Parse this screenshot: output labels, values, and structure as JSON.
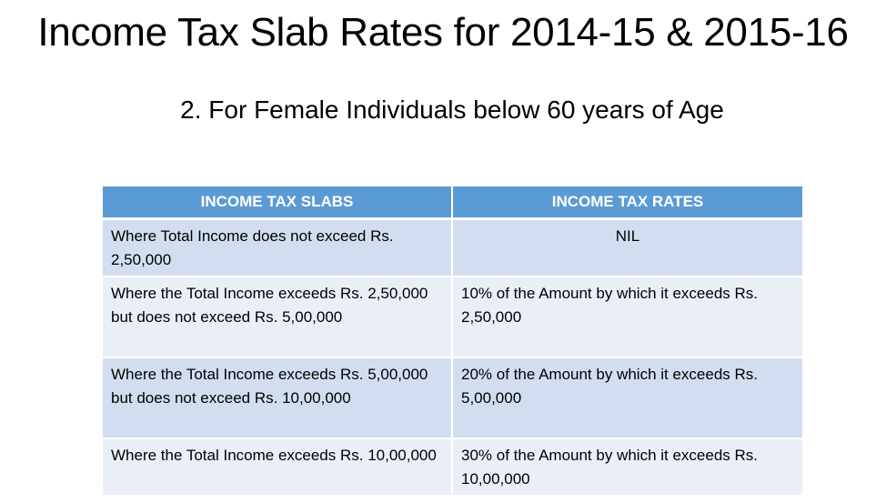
{
  "title": "Income Tax Slab Rates for 2014-15 & 2015-16",
  "subtitle": "2. For Female Individuals below 60 years of Age",
  "table": {
    "headers": [
      "INCOME TAX SLABS",
      "INCOME TAX RATES"
    ],
    "rows": [
      {
        "slab": "Where Total Income does not exceed Rs. 2,50,000",
        "rate": "NIL"
      },
      {
        "slab": "Where the Total Income exceeds Rs. 2,50,000 but does not exceed Rs. 5,00,000",
        "rate": "10% of the Amount by which it exceeds Rs. 2,50,000"
      },
      {
        "slab": "Where the Total Income exceeds Rs. 5,00,000 but does not exceed Rs. 10,00,000",
        "rate": "20% of the Amount by which it exceeds Rs. 5,00,000"
      },
      {
        "slab": "Where the Total Income exceeds Rs. 10,00,000",
        "rate": "30% of the Amount by which it exceeds Rs. 10,00,000"
      }
    ]
  },
  "colors": {
    "header_bg": "#5b9bd5",
    "row_odd_bg": "#d2deef",
    "row_even_bg": "#eaeff7"
  }
}
